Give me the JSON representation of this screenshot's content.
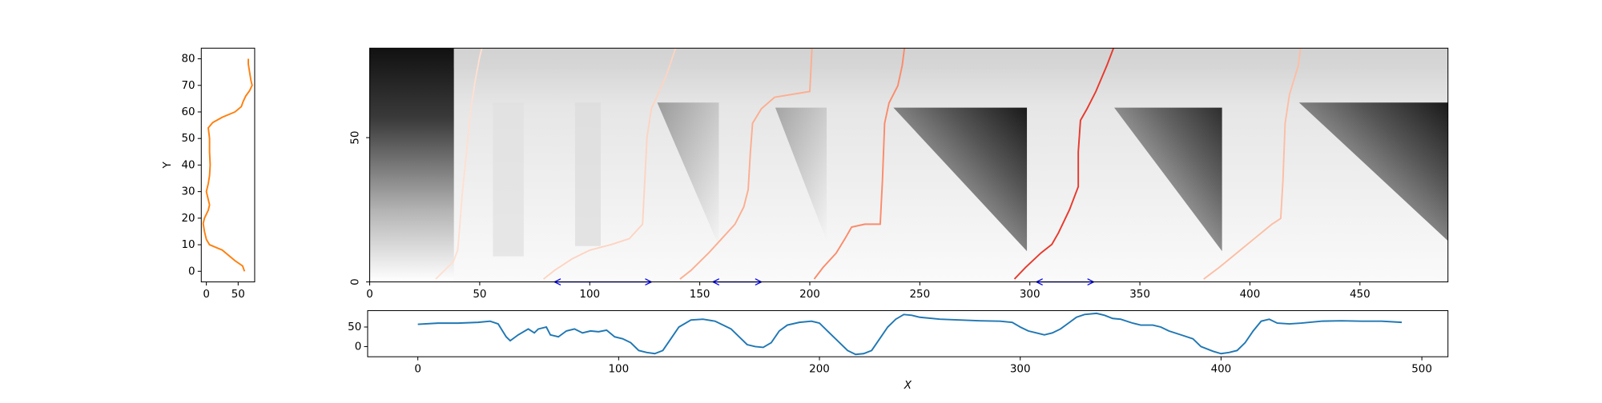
{
  "chart_data": [
    {
      "type": "line",
      "ylabel": "Y",
      "xlim": [
        -8,
        76
      ],
      "ylim": [
        -4,
        84
      ],
      "xticks": [
        0,
        50
      ],
      "yticks": [
        0,
        10,
        20,
        30,
        40,
        50,
        60,
        70,
        80
      ],
      "series": [
        {
          "color": "#ff7f0e",
          "x": [
            60,
            57,
            45,
            35,
            25,
            5,
            0,
            -3,
            -5,
            -3,
            3,
            5,
            2,
            0,
            3,
            5,
            6,
            5,
            5,
            3,
            10,
            25,
            45,
            55,
            58,
            62,
            68,
            72,
            70,
            68,
            66,
            66
          ],
          "y": [
            0,
            2,
            4,
            6,
            8,
            10,
            12,
            15,
            18,
            20,
            23,
            25,
            28,
            30,
            33,
            36,
            40,
            45,
            50,
            54,
            56,
            58,
            60,
            62,
            64,
            66,
            68,
            70,
            72,
            75,
            78,
            80
          ]
        }
      ]
    },
    {
      "type": "heatmap",
      "xlim": [
        0,
        490
      ],
      "ylim": [
        0,
        81
      ],
      "xticks": [
        0,
        50,
        100,
        150,
        200,
        250,
        300,
        350,
        400,
        450
      ],
      "yticks": [
        0,
        50
      ],
      "series": [
        {
          "color": "#fee0d2",
          "x": [
            30,
            34,
            38,
            40,
            41,
            42,
            44,
            46,
            48,
            50,
            51
          ],
          "y": [
            1,
            4,
            7,
            11,
            20,
            30,
            45,
            60,
            70,
            78,
            81
          ]
        },
        {
          "color": "#fdd4c2",
          "x": [
            79,
            84,
            92,
            100,
            110,
            118,
            124,
            125,
            126,
            128,
            131,
            135,
            139
          ],
          "y": [
            1,
            4,
            8,
            11,
            13,
            15,
            20,
            35,
            50,
            60,
            65,
            72,
            81
          ]
        },
        {
          "color": "#fcae91",
          "x": [
            141,
            146,
            154,
            160,
            166,
            170,
            172,
            173,
            174,
            178,
            184,
            200,
            201
          ],
          "y": [
            1,
            4,
            10,
            15,
            20,
            26,
            32,
            45,
            55,
            60,
            64,
            66,
            81
          ]
        },
        {
          "color": "#fb8b6a",
          "x": [
            202,
            206,
            212,
            216,
            219,
            225,
            232,
            233,
            234,
            236,
            240,
            242,
            243
          ],
          "y": [
            1,
            5,
            10,
            15,
            19,
            20,
            20,
            35,
            55,
            62,
            68,
            75,
            81
          ]
        },
        {
          "color": "#e8392c",
          "x": [
            293,
            298,
            305,
            310,
            313,
            318,
            322,
            322,
            323,
            326,
            330,
            335,
            338
          ],
          "y": [
            1,
            5,
            10,
            13,
            17,
            25,
            33,
            45,
            56,
            60,
            66,
            75,
            81
          ]
        },
        {
          "color": "#fcbea5",
          "x": [
            379,
            386,
            394,
            402,
            410,
            414,
            415,
            416,
            418,
            422,
            423
          ],
          "y": [
            1,
            5,
            10,
            15,
            20,
            22,
            35,
            55,
            65,
            75,
            81
          ]
        }
      ],
      "arrows": [
        {
          "x": [
            84,
            128
          ],
          "y": 0,
          "color": "#0000ff"
        },
        {
          "x": [
            156,
            178
          ],
          "y": 0,
          "color": "#0000ff"
        },
        {
          "x": [
            303,
            329
          ],
          "y": 0,
          "color": "#0000ff"
        }
      ]
    },
    {
      "type": "line",
      "xlabel": "X",
      "xlim": [
        -25,
        513
      ],
      "ylim": [
        -26,
        92
      ],
      "xticks": [
        0,
        100,
        200,
        300,
        400,
        500
      ],
      "yticks": [
        0,
        50
      ],
      "series": [
        {
          "color": "#1f77b4",
          "x": [
            0,
            10,
            20,
            30,
            36,
            40,
            44,
            46,
            50,
            55,
            58,
            60,
            64,
            66,
            70,
            74,
            78,
            82,
            86,
            90,
            94,
            98,
            102,
            106,
            110,
            114,
            118,
            122,
            126,
            130,
            136,
            142,
            148,
            152,
            156,
            160,
            164,
            168,
            172,
            176,
            180,
            184,
            190,
            196,
            200,
            204,
            210,
            214,
            218,
            222,
            226,
            230,
            234,
            238,
            242,
            246,
            250,
            260,
            270,
            280,
            290,
            296,
            300,
            304,
            308,
            312,
            316,
            320,
            324,
            328,
            332,
            338,
            342,
            346,
            350,
            356,
            360,
            366,
            370,
            374,
            380,
            386,
            390,
            396,
            400,
            404,
            408,
            412,
            416,
            420,
            424,
            428,
            434,
            440,
            450,
            460,
            470,
            480,
            490
          ],
          "y": [
            57,
            60,
            60,
            62,
            65,
            58,
            25,
            15,
            30,
            45,
            35,
            45,
            50,
            30,
            25,
            40,
            45,
            35,
            40,
            38,
            42,
            25,
            20,
            10,
            -10,
            -15,
            -18,
            -10,
            20,
            50,
            68,
            70,
            65,
            55,
            45,
            25,
            5,
            0,
            -2,
            10,
            40,
            55,
            62,
            65,
            60,
            40,
            10,
            -10,
            -20,
            -18,
            -10,
            20,
            50,
            70,
            82,
            80,
            75,
            70,
            68,
            66,
            65,
            62,
            50,
            40,
            35,
            30,
            35,
            45,
            60,
            75,
            82,
            85,
            80,
            72,
            70,
            60,
            55,
            55,
            50,
            40,
            30,
            20,
            0,
            -12,
            -18,
            -15,
            -10,
            10,
            40,
            65,
            70,
            60,
            58,
            60,
            65,
            66,
            65,
            65,
            62
          ]
        }
      ]
    }
  ]
}
